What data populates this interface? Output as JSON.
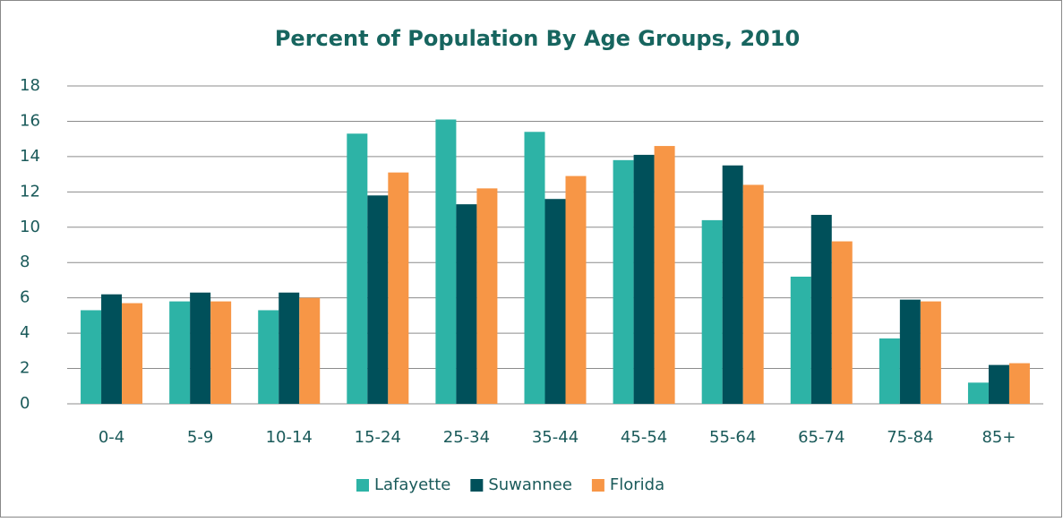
{
  "chart_data": {
    "type": "bar",
    "title": "Percent of Population By Age Groups, 2010",
    "categories": [
      "0-4",
      "5-9",
      "10-14",
      "15-24",
      "25-34",
      "35-44",
      "45-54",
      "55-64",
      "65-74",
      "75-84",
      "85+"
    ],
    "series": [
      {
        "name": "Lafayette",
        "color": "#2db3a6",
        "values": [
          5.3,
          5.8,
          5.3,
          15.3,
          16.1,
          15.4,
          13.8,
          10.4,
          7.2,
          3.7,
          1.2
        ]
      },
      {
        "name": "Suwannee",
        "color": "#00505a",
        "values": [
          6.2,
          6.3,
          6.3,
          11.8,
          11.3,
          11.6,
          14.1,
          13.5,
          10.7,
          5.9,
          2.2
        ]
      },
      {
        "name": "Florida",
        "color": "#f79646",
        "values": [
          5.7,
          5.8,
          6.0,
          13.1,
          12.2,
          12.9,
          14.6,
          12.4,
          9.2,
          5.8,
          2.3
        ]
      }
    ],
    "ylim": [
      0,
      18
    ],
    "yticks": [
      0,
      2,
      4,
      6,
      8,
      10,
      12,
      14,
      16,
      18
    ],
    "grid": true,
    "legend": "bottom"
  }
}
